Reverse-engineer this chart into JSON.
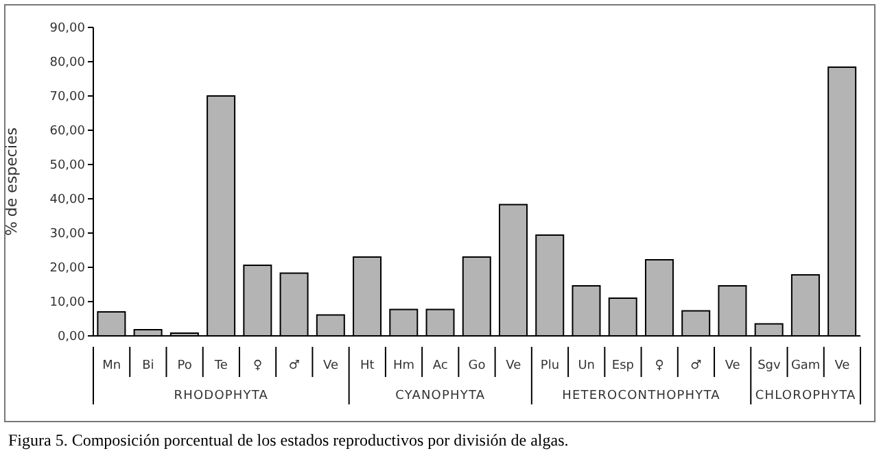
{
  "chart_data": {
    "type": "bar",
    "ylabel": "% de especies",
    "categories": [
      "Mn",
      "Bi",
      "Po",
      "Te",
      "♀",
      "♂",
      "Ve",
      "Ht",
      "Hm",
      "Ac",
      "Go",
      "Ve",
      "Plu",
      "Un",
      "Esp",
      "♀",
      "♂",
      "Ve",
      "Sgv",
      "Gam",
      "Ve"
    ],
    "values": [
      7.0,
      1.8,
      0.8,
      70.0,
      20.6,
      18.3,
      6.1,
      23.0,
      7.7,
      7.7,
      23.0,
      38.3,
      29.4,
      14.6,
      11.0,
      22.2,
      7.3,
      14.6,
      3.5,
      17.8,
      78.4
    ],
    "color": "#b4b4b4",
    "ylim": [
      0,
      90
    ],
    "yticks": [
      {
        "value": 0,
        "label": "0,00"
      },
      {
        "value": 10,
        "label": "10,00"
      },
      {
        "value": 20,
        "label": "20,00"
      },
      {
        "value": 30,
        "label": "30,00"
      },
      {
        "value": 40,
        "label": "40,00"
      },
      {
        "value": 50,
        "label": "50,00"
      },
      {
        "value": 60,
        "label": "60,00"
      },
      {
        "value": 70,
        "label": "70,00"
      },
      {
        "value": 80,
        "label": "80,00"
      },
      {
        "value": 90,
        "label": "90,00"
      }
    ],
    "grid": false,
    "annotations": [
      "RHODOPHYTA",
      "CYANOPHYTA",
      "HETEROCONTHOPHYTA",
      "CHLOROPHYTA",
      "Figura 5. Composición porcentual de los estados reproductivos por división de algas."
    ]
  }
}
